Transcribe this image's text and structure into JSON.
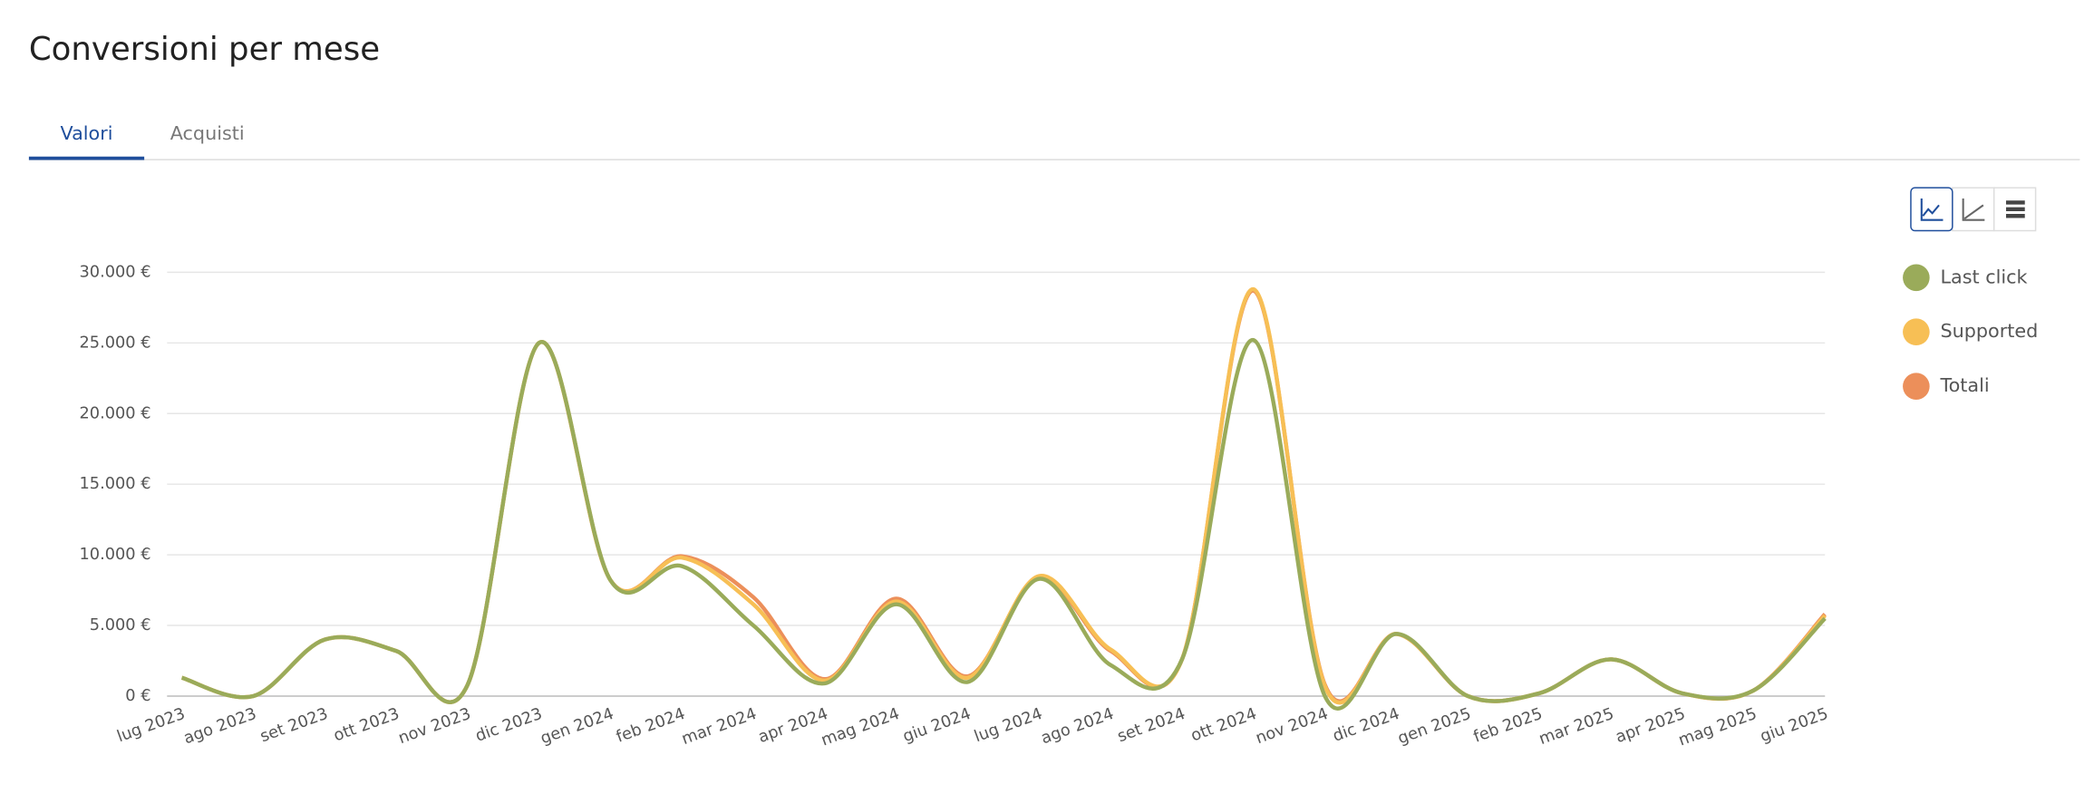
{
  "header": {
    "title": "Conversioni per mese"
  },
  "tabs": [
    {
      "label": "Valori",
      "active": true
    },
    {
      "label": "Acquisti",
      "active": false
    }
  ],
  "chart_data": {
    "type": "line",
    "categories": [
      "lug 2023",
      "ago 2023",
      "set 2023",
      "ott 2023",
      "nov 2023",
      "dic 2023",
      "gen 2024",
      "feb 2024",
      "mar 2024",
      "apr 2024",
      "mag 2024",
      "giu 2024",
      "lug 2024",
      "ago 2024",
      "set 2024",
      "ott 2024",
      "nov 2024",
      "dic 2024",
      "gen 2025",
      "feb 2025",
      "mar 2025",
      "apr 2025",
      "mag 2025",
      "giu 2025"
    ],
    "series": [
      {
        "name": "Last click",
        "color": "#9aab5a",
        "values": [
          1300,
          0,
          4000,
          3200,
          800,
          25000,
          8200,
          9200,
          5000,
          900,
          6500,
          1000,
          8300,
          2200,
          2600,
          25200,
          0,
          4400,
          0,
          200,
          2600,
          200,
          400,
          5500
        ]
      },
      {
        "name": "Supported",
        "color": "#f7bf55",
        "values": [
          1300,
          0,
          4000,
          3200,
          800,
          25000,
          8200,
          9800,
          6500,
          1100,
          6700,
          1300,
          8500,
          3300,
          2600,
          28800,
          700,
          4400,
          0,
          200,
          2600,
          200,
          400,
          5700
        ]
      },
      {
        "name": "Totali",
        "color": "#ec8f5a",
        "values": [
          1300,
          0,
          4000,
          3200,
          800,
          25000,
          8200,
          9900,
          7000,
          1200,
          6900,
          1400,
          8400,
          3200,
          2600,
          28700,
          800,
          4400,
          0,
          200,
          2600,
          200,
          400,
          5800
        ]
      }
    ],
    "ylim": [
      0,
      30000
    ],
    "yticks": [
      {
        "value": 0,
        "label": "0 €"
      },
      {
        "value": 5000,
        "label": "5.000 €"
      },
      {
        "value": 10000,
        "label": "10.000 €"
      },
      {
        "value": 15000,
        "label": "15.000 €"
      },
      {
        "value": 20000,
        "label": "20.000 €"
      },
      {
        "value": 25000,
        "label": "25.000 €"
      },
      {
        "value": 30000,
        "label": "30.000 €"
      }
    ],
    "grid": true,
    "legend": "right"
  }
}
